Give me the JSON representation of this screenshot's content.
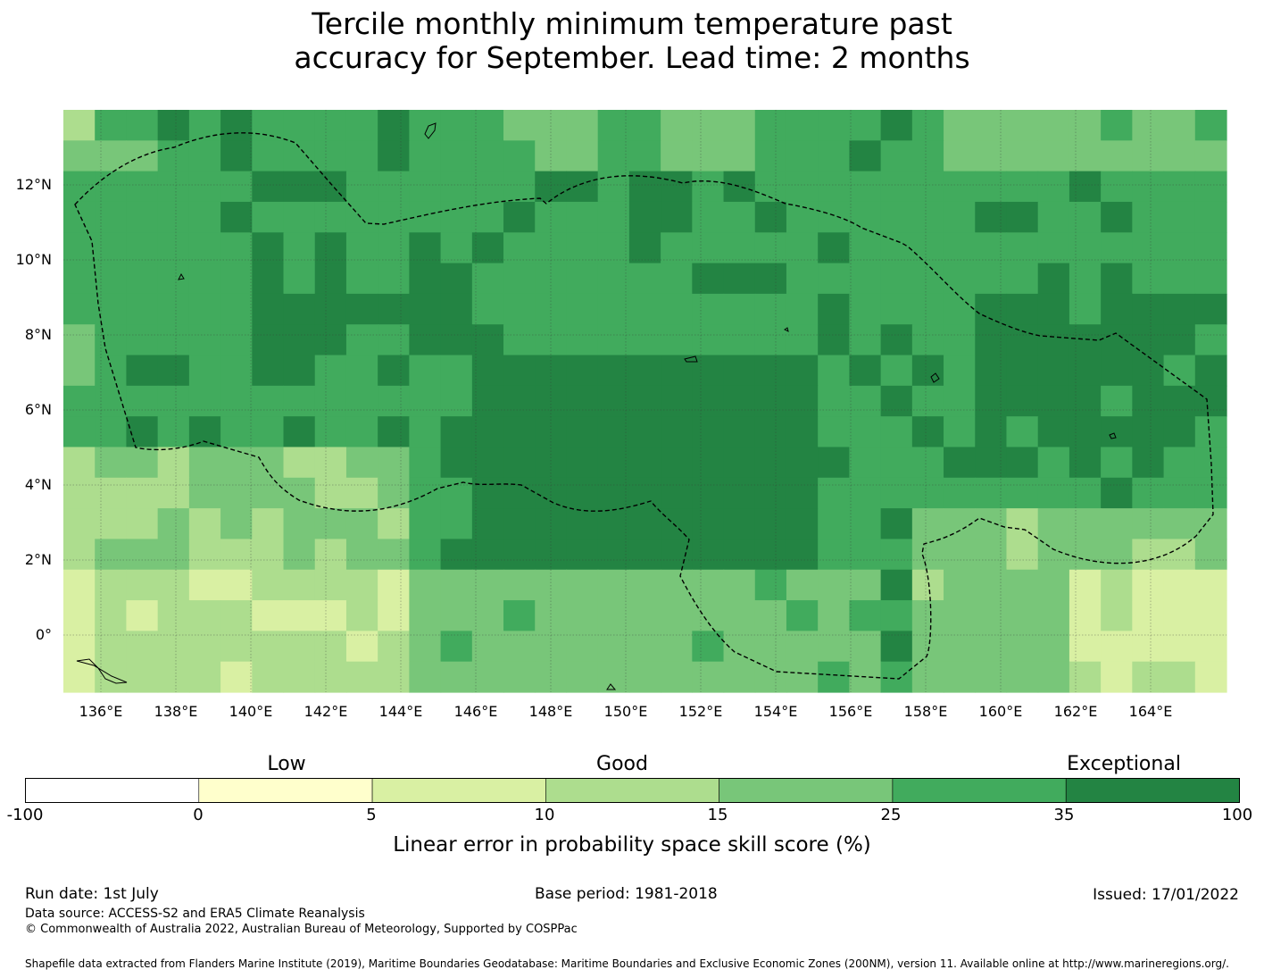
{
  "title_line1": "Tercile monthly minimum temperature past",
  "title_line2": "accuracy for September. Lead time: 2 months",
  "map": {
    "lon_range": [
      135,
      166
    ],
    "lat_range": [
      -1.5,
      14
    ],
    "cell_size_deg": 0.833,
    "x_tick_labels": [
      "136°E",
      "138°E",
      "140°E",
      "142°E",
      "144°E",
      "146°E",
      "148°E",
      "150°E",
      "152°E",
      "154°E",
      "156°E",
      "158°E",
      "160°E",
      "162°E",
      "164°E"
    ],
    "y_tick_labels": [
      "12°N",
      "10°N",
      "8°N",
      "6°N",
      "4°N",
      "2°N",
      "0°"
    ],
    "gridlines": true,
    "boundary_style": "dashed"
  },
  "colorbar": {
    "categories": [
      "Low",
      "Good",
      "Exceptional"
    ],
    "tick_labels": [
      "-100",
      "0",
      "5",
      "10",
      "15",
      "25",
      "35",
      "100"
    ],
    "colors": [
      "#ffffff",
      "#ffffcc",
      "#d9f0a3",
      "#addd8e",
      "#78c679",
      "#41ab5d",
      "#238443"
    ],
    "title": "Linear error in probability space skill score (%)"
  },
  "footer": {
    "run_date": "Run date: 1st July",
    "base_period": "Base period: 1981-2018",
    "issued": "Issued: 17/01/2022",
    "data_source": "Data source: ACCESS-S2 and ERA5 Climate Reanalysis",
    "copyright": "© Commonwealth of Australia 2022, Australian Bureau of Meteorology, Supported by COSPPac",
    "shapefile": "Shapefile data extracted from Flanders Marine Institute (2019), Maritime Boundaries Geodatabase: Maritime Boundaries and Exclusive Economic Zones (200NM), version 11. Available online at http://www.marineregions.org/."
  }
}
